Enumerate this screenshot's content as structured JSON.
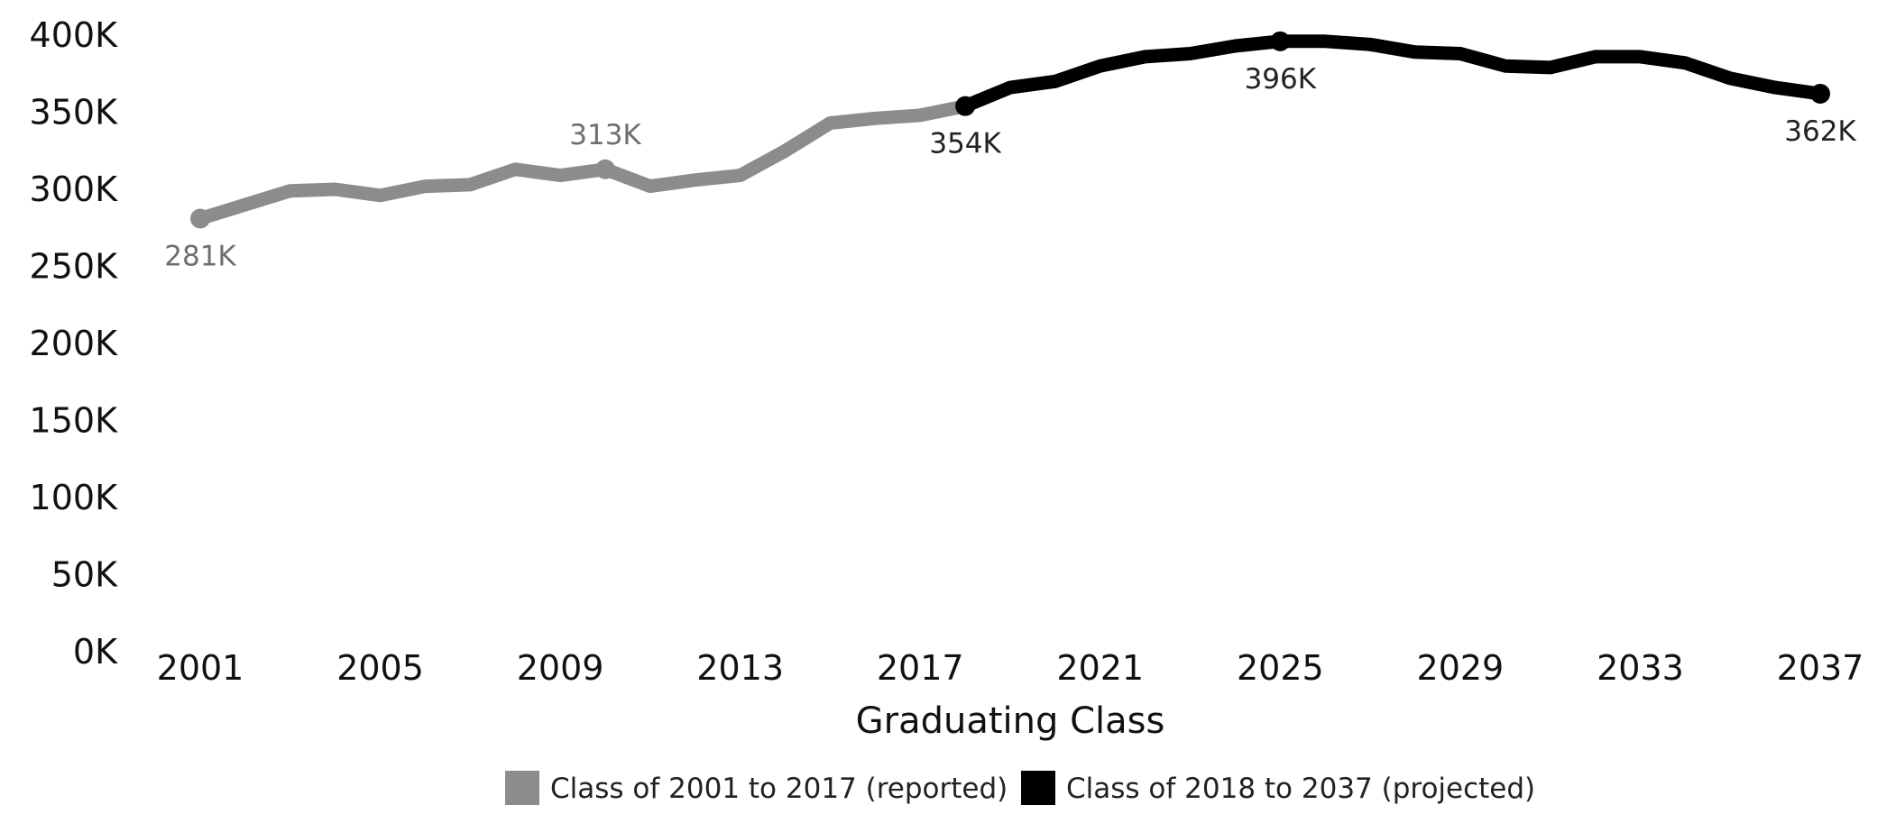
{
  "chart_data": {
    "type": "line",
    "xlabel": "Graduating Class",
    "ylabel": "",
    "xlim": [
      2001,
      2037
    ],
    "ylim": [
      0,
      400000
    ],
    "grid": false,
    "legend_position": "bottom-center",
    "x_ticks": [
      "2001",
      "2005",
      "2009",
      "2013",
      "2017",
      "2021",
      "2025",
      "2029",
      "2033",
      "2037"
    ],
    "y_ticks": [
      "0K",
      "50K",
      "100K",
      "150K",
      "200K",
      "250K",
      "300K",
      "350K",
      "400K"
    ],
    "series": [
      {
        "name": "Class of 2001 to 2017 (reported)",
        "color": "#8c8c8c",
        "x": [
          2001,
          2002,
          2003,
          2004,
          2005,
          2006,
          2007,
          2008,
          2009,
          2010,
          2011,
          2012,
          2013,
          2014,
          2015,
          2016,
          2017,
          2018
        ],
        "y": [
          281000,
          290000,
          299000,
          300000,
          296000,
          302000,
          303000,
          313000,
          309000,
          313000,
          302000,
          306000,
          309000,
          325000,
          343000,
          346000,
          348000,
          354000
        ]
      },
      {
        "name": "Class of 2018 to 2037 (projected)",
        "color": "#000000",
        "x": [
          2018,
          2019,
          2020,
          2021,
          2022,
          2023,
          2024,
          2025,
          2026,
          2027,
          2028,
          2029,
          2030,
          2031,
          2032,
          2033,
          2034,
          2035,
          2036,
          2037
        ],
        "y": [
          354000,
          366000,
          370000,
          380000,
          386000,
          388000,
          393000,
          396000,
          396000,
          394000,
          389000,
          388000,
          380000,
          379000,
          386000,
          386000,
          382000,
          372000,
          366000,
          362000
        ]
      }
    ],
    "annotations": [
      {
        "series": 0,
        "x": 2001,
        "y": 281000,
        "label": "281K",
        "position": "below",
        "marker": true
      },
      {
        "series": 0,
        "x": 2010,
        "y": 313000,
        "label": "313K",
        "position": "above",
        "marker": true
      },
      {
        "series": 1,
        "x": 2018,
        "y": 354000,
        "label": "354K",
        "position": "below",
        "marker": true
      },
      {
        "series": 1,
        "x": 2025,
        "y": 396000,
        "label": "396K",
        "position": "below",
        "marker": true
      },
      {
        "series": 1,
        "x": 2037,
        "y": 362000,
        "label": "362K",
        "position": "below",
        "marker": true
      }
    ]
  }
}
